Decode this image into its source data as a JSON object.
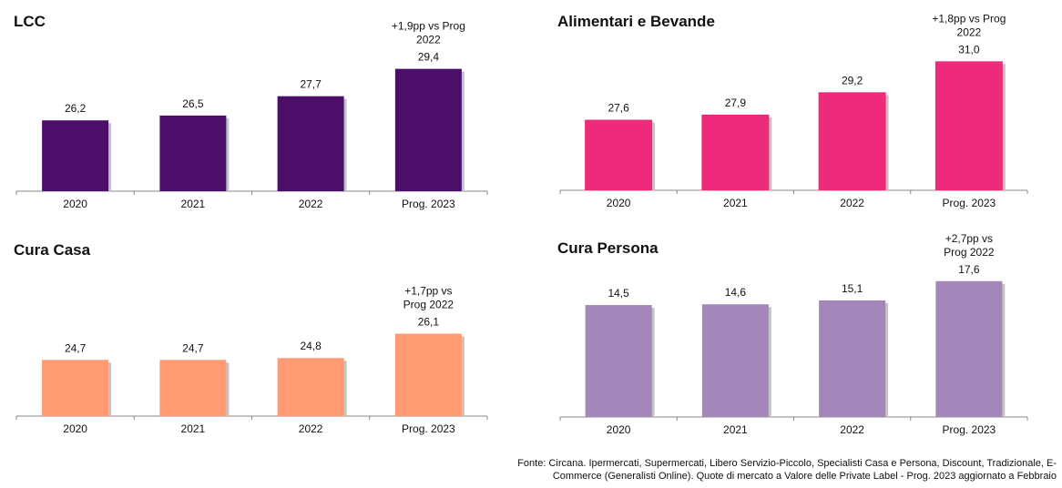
{
  "chart_data": [
    {
      "type": "bar",
      "title": "LCC",
      "categories": [
        "2020",
        "2021",
        "2022",
        "Prog. 2023"
      ],
      "values": [
        26.2,
        26.5,
        27.7,
        29.4
      ],
      "value_labels": [
        "26,2",
        "26,5",
        "27,7",
        "29,4"
      ],
      "annotation": [
        "+1,9pp vs Prog",
        "2022"
      ],
      "color": "#4B0F6A",
      "ylim": [
        21.8,
        30.0
      ]
    },
    {
      "type": "bar",
      "title": "Alimentari e Bevande",
      "categories": [
        "2020",
        "2021",
        "2022",
        "Prog. 2023"
      ],
      "values": [
        27.6,
        27.9,
        29.2,
        31.0
      ],
      "value_labels": [
        "27,6",
        "27,9",
        "29,2",
        "31,0"
      ],
      "annotation": [
        "+1,8pp vs Prog",
        "2022"
      ],
      "color": "#EE2A7B",
      "ylim": [
        23.5,
        31.6
      ]
    },
    {
      "type": "bar",
      "title": "Cura Casa",
      "categories": [
        "2020",
        "2021",
        "2022",
        "Prog. 2023"
      ],
      "values": [
        24.7,
        24.7,
        24.8,
        26.1
      ],
      "value_labels": [
        "24,7",
        "24,7",
        "24,8",
        "26,1"
      ],
      "annotation": [
        "+1,7pp vs",
        "Prog 2022"
      ],
      "color": "#FF9A72",
      "ylim": [
        21.7,
        27.0
      ]
    },
    {
      "type": "bar",
      "title": "Cura Persona",
      "categories": [
        "2020",
        "2021",
        "2022",
        "Prog. 2023"
      ],
      "values": [
        14.5,
        14.6,
        15.1,
        17.6
      ],
      "value_labels": [
        "14,5",
        "14,6",
        "15,1",
        "17,6"
      ],
      "annotation": [
        "+2,7pp vs",
        "Prog 2022"
      ],
      "color": "#A387BB",
      "ylim": [
        0,
        18.4
      ]
    }
  ],
  "source": {
    "line1": "Fonte: Circana. Ipermercati, Supermercati, Libero Servizio-Piccolo, Specialisti Casa e Persona, Discount, Tradizionale, E-",
    "line2": "Commerce (Generalisti Online). Quote di mercato a Valore delle Private Label - Prog. 2023 aggiornato a Febbraio"
  }
}
